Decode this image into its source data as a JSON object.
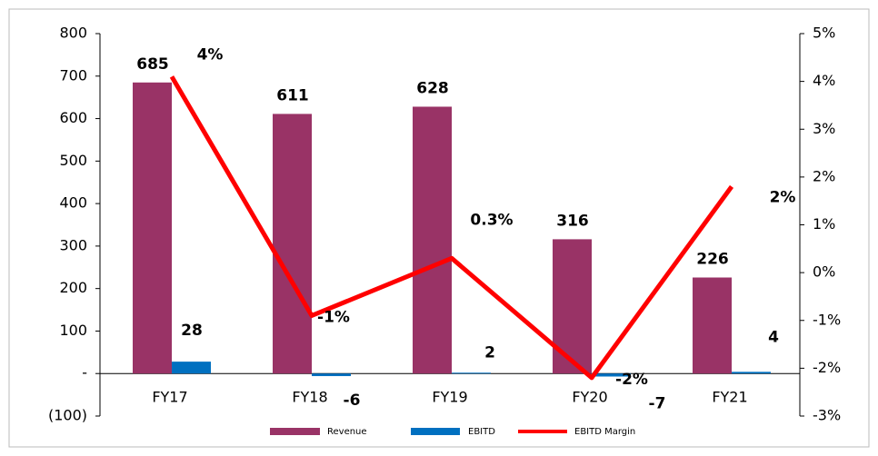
{
  "chart_data": {
    "type": "bar",
    "categories": [
      "FY17",
      "FY18",
      "FY19",
      "FY20",
      "FY21"
    ],
    "series": [
      {
        "name": "Revenue",
        "color": "#993366",
        "values": [
          685,
          611,
          628,
          316,
          226
        ]
      },
      {
        "name": "EBITD",
        "color": "#0070c0",
        "values": [
          28,
          -6,
          2,
          -7,
          4
        ]
      },
      {
        "name": "EBITD Margin",
        "color": "#ff0000",
        "type": "line",
        "axis": "y2",
        "values": [
          4.1,
          -0.9,
          0.3,
          -2.2,
          1.8
        ],
        "value_labels": [
          "4%",
          "-1%",
          "0.3%",
          "-2%",
          "2%"
        ]
      }
    ],
    "ylim": [
      -100,
      800
    ],
    "yticks": [
      {
        "value": -100,
        "label": "(100)"
      },
      {
        "value": 0,
        "label": "-"
      },
      100,
      200,
      300,
      400,
      500,
      600,
      700,
      800
    ],
    "y2lim": [
      -3,
      5
    ],
    "y2ticks": [
      {
        "value": -3,
        "label": "-3%"
      },
      {
        "value": -2,
        "label": "-2%"
      },
      {
        "value": -1,
        "label": "-1%"
      },
      {
        "value": 0,
        "label": "0%"
      },
      {
        "value": 1,
        "label": "1%"
      },
      {
        "value": 2,
        "label": "2%"
      },
      {
        "value": 3,
        "label": "3%"
      },
      {
        "value": 4,
        "label": "4%"
      },
      {
        "value": 5,
        "label": "5%"
      }
    ],
    "legend": "bottom"
  }
}
